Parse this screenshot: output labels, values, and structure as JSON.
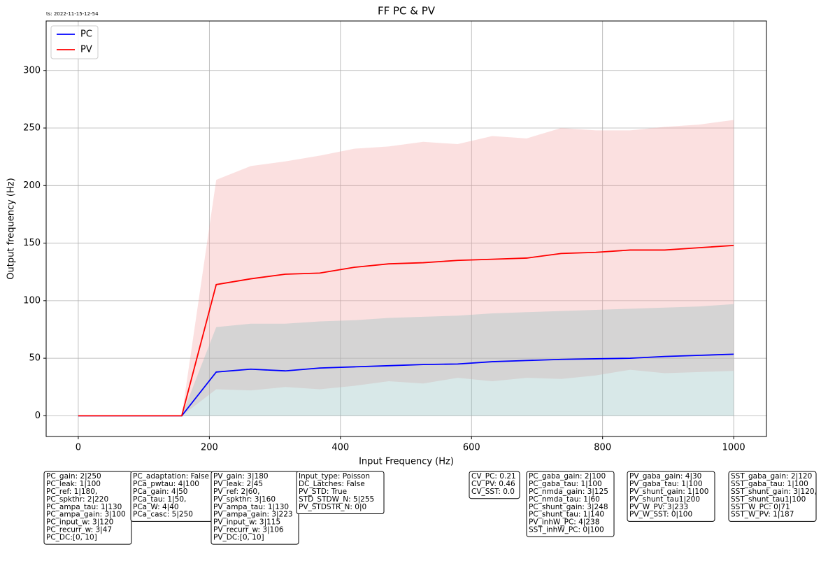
{
  "chart_data": {
    "type": "line",
    "title": "FF PC & PV",
    "timestamp": "ts: 2022-11-15-12-54",
    "x_label": "Input Frequency (Hz)",
    "y_label": "Output frequency (Hz)",
    "x": [
      0,
      52.6,
      105.3,
      157.9,
      210.5,
      263.2,
      315.8,
      368.4,
      421.1,
      473.7,
      526.3,
      578.9,
      631.6,
      684.2,
      736.8,
      789.5,
      842.1,
      894.7,
      947.4,
      1000
    ],
    "series": [
      {
        "name": "PC",
        "color": "#0000ff",
        "values": [
          0,
          0,
          0,
          0,
          38,
          40.5,
          39,
          41.5,
          42.5,
          43.5,
          44.5,
          45,
          47,
          48,
          49,
          49.5,
          50,
          51.5,
          52.5,
          53.5
        ]
      },
      {
        "name": "PV",
        "color": "#ff0000",
        "values": [
          0,
          0,
          0,
          0,
          114,
          119,
          123,
          124,
          129,
          132,
          133,
          135,
          136,
          137,
          141,
          142,
          144,
          144,
          146,
          148
        ]
      }
    ],
    "bands": [
      {
        "color": "#f4a6a6",
        "upper": [
          0,
          0,
          0,
          0,
          205,
          217,
          221,
          226,
          232,
          234,
          238,
          236,
          243,
          241,
          250,
          248,
          248,
          251,
          253,
          257
        ],
        "lower": [
          0,
          0,
          0,
          0,
          23,
          22,
          25,
          23,
          26,
          30,
          28,
          33,
          30,
          33,
          32,
          35,
          40,
          37,
          38,
          39
        ]
      },
      {
        "color": "#8fbcbc",
        "upper": [
          0,
          0,
          0,
          0,
          77,
          80,
          80,
          82,
          83,
          85,
          86,
          87,
          89,
          90,
          91,
          92,
          93,
          94,
          95,
          97
        ],
        "lower": [
          0,
          0,
          0,
          0,
          0,
          0,
          0,
          0,
          0,
          0,
          0,
          0,
          0,
          0,
          0,
          0,
          0,
          0,
          0,
          0
        ]
      }
    ],
    "xlim": [
      -49,
      1050
    ],
    "ylim": [
      -18,
      343
    ],
    "xticks": [
      0,
      200,
      400,
      600,
      800,
      1000
    ],
    "yticks": [
      0,
      50,
      100,
      150,
      200,
      250,
      300
    ],
    "grid": true,
    "legend": "upper left",
    "annotations": [
      [
        "PC_gain: 2|250",
        "PC_leak: 1|100",
        "PC_ref: 1|180,",
        "PC_spkthr: 2|220",
        "PC_ampa_tau: 1|130",
        "PC_ampa_gain: 3|100",
        "PC_input_w: 3|120",
        "PC_recurr_w: 3|47",
        "PC_DC:[0, 10]"
      ],
      [
        "PC_adaptation: False",
        "PCa_pwtau: 4|100",
        "PCa_gain: 4|50",
        "PCa_tau: 1|50,",
        "PCa_W: 4|40",
        "PCa_casc: 5|250"
      ],
      [
        "PV_gain: 3|180",
        "PV_leak: 2|45",
        "PV_ref: 2|60,",
        "PV_spkthr: 3|160",
        "PV_ampa_tau: 1|130",
        "PV_ampa_gain: 3|223",
        "PV_input_w: 3|115",
        "PV_recurr_w: 3|106",
        "PV_DC:[0, 10]"
      ],
      [
        "Input_type: Poisson",
        "DC_Latches: False",
        "PV_STD: True",
        "STD_STDW_N: 5|255",
        "PV_STDSTR_N: 0|0"
      ],
      [
        "CV_PC: 0.21",
        "CV_PV: 0.46",
        "CV_SST: 0.0"
      ],
      [
        "PC_gaba_gain: 2|100",
        "PC_gaba_tau: 1|100",
        "PC_nmda_gain: 3|125",
        "PC_nmda_tau: 1|60",
        "PC_shunt_gain: 3|248",
        "PC_shunt_tau: 1|140",
        "PV_inhW_PC: 4|238",
        "SST_inhW_PC: 0|100"
      ],
      [
        "PV_gaba_gain: 4|30",
        "PV_gaba_tau: 1|100",
        "PV_shunt_gain: 1|100",
        "PV_shunt_tau1|200",
        "PV_W_PV: 3|233",
        "PV_W_SST: 0|100"
      ],
      [
        "SST_gaba_gain: 2|120",
        "SST_gaba_tau: 1|100",
        "SST_shunt_gain: 3|120,",
        "SST_shunt_tau1|100",
        "SST_W_PC: 0|71",
        "SST_W_PV: 1|187"
      ]
    ]
  }
}
